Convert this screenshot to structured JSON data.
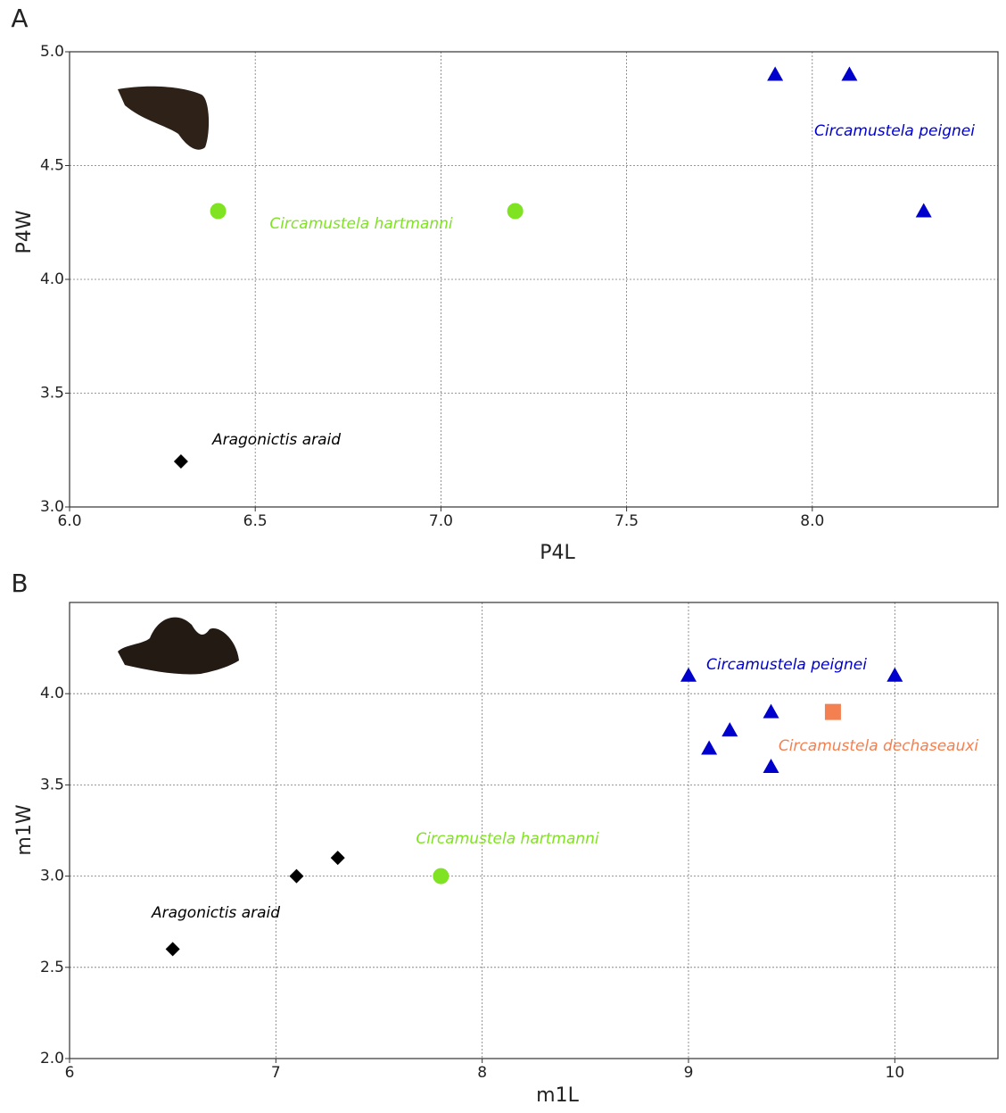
{
  "chart_data": [
    {
      "type": "scatter",
      "panel": "A",
      "x_label": "P4L",
      "y_label": "P4W",
      "xlim": [
        6.0,
        8.5
      ],
      "ylim": [
        3.0,
        5.0
      ],
      "xticks": [
        {
          "value": 6,
          "label": "6.0"
        },
        6.5,
        {
          "value": 7,
          "label": "7.0"
        },
        7.5,
        {
          "value": 8,
          "label": "8.0"
        }
      ],
      "yticks": [
        {
          "value": 3,
          "label": "3.0"
        },
        3.5,
        {
          "value": 4,
          "label": "4.0"
        },
        4.5,
        {
          "value": 5,
          "label": "5.0"
        }
      ],
      "grid": true,
      "series": [
        {
          "name": "Aragonictis araid",
          "color": "#000000",
          "marker": "diamond",
          "x": [
            6.3
          ],
          "y": [
            3.2
          ]
        },
        {
          "name": "Circamustela hartmanni",
          "color": "#7fe321",
          "marker": "circle",
          "x": [
            6.4,
            7.2
          ],
          "y": [
            4.3,
            4.3
          ]
        },
        {
          "name": "Circamustela peignei",
          "color": "#0000cc",
          "marker": "triangle",
          "x": [
            7.9,
            8.1,
            8.3
          ],
          "y": [
            4.9,
            4.9,
            4.3
          ]
        }
      ]
    },
    {
      "type": "scatter",
      "panel": "B",
      "x_label": "m1L",
      "y_label": "m1W",
      "xlim": [
        6,
        10.5
      ],
      "ylim": [
        2.0,
        4.5
      ],
      "xticks": [
        6,
        7,
        8,
        9,
        10
      ],
      "yticks": [
        {
          "value": 2,
          "label": "2.0"
        },
        2.5,
        {
          "value": 3,
          "label": "3.0"
        },
        3.5,
        {
          "value": 4,
          "label": "4.0"
        }
      ],
      "grid": true,
      "series": [
        {
          "name": "Aragonictis araid",
          "color": "#000000",
          "marker": "diamond",
          "x": [
            6.5,
            7.1,
            7.3
          ],
          "y": [
            2.6,
            3.0,
            3.1
          ]
        },
        {
          "name": "Circamustela hartmanni",
          "color": "#7fe321",
          "marker": "circle",
          "x": [
            7.8
          ],
          "y": [
            3.0
          ]
        },
        {
          "name": "Circamustela peignei",
          "color": "#0000cc",
          "marker": "triangle",
          "x": [
            9.0,
            10.0,
            9.4,
            9.2,
            9.1,
            9.4
          ],
          "y": [
            4.1,
            4.1,
            3.9,
            3.8,
            3.7,
            3.6
          ]
        },
        {
          "name": "Circamustela dechaseauxi",
          "color": "#f47f50",
          "marker": "square",
          "x": [
            9.7
          ],
          "y": [
            3.9
          ]
        }
      ]
    }
  ]
}
